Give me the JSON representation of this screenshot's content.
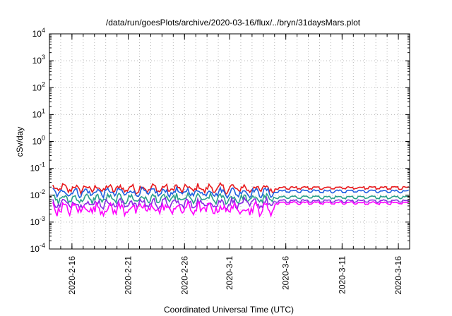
{
  "chart_data": {
    "type": "line",
    "title": "/data/run/goesPlots/archive/2020-03-16/flux/../bryn/31daysMars.plot",
    "xlabel": "Coordinated Universal Time (UTC)",
    "ylabel": "cSv/day",
    "yscale": "log",
    "ylim": [
      0.0001,
      10000
    ],
    "yticks": [
      {
        "value": 0.0001,
        "base": "10",
        "exp": "-4"
      },
      {
        "value": 0.001,
        "base": "10",
        "exp": "-3"
      },
      {
        "value": 0.01,
        "base": "10",
        "exp": "-2"
      },
      {
        "value": 0.1,
        "base": "10",
        "exp": "-1"
      },
      {
        "value": 1,
        "base": "10",
        "exp": "0"
      },
      {
        "value": 10,
        "base": "10",
        "exp": "1"
      },
      {
        "value": 100,
        "base": "10",
        "exp": "2"
      },
      {
        "value": 1000,
        "base": "10",
        "exp": "3"
      },
      {
        "value": 10000,
        "base": "10",
        "exp": "4"
      }
    ],
    "xlim": [
      "2020-02-14",
      "2020-03-17"
    ],
    "xticks": [
      "2020-2-16",
      "2020-2-21",
      "2020-2-26",
      "2020-3-1",
      "2020-3-6",
      "2020-3-11",
      "2020-3-16"
    ],
    "grid": true,
    "legend": "none",
    "series": [
      {
        "color": "#e8191c",
        "level": 0.018,
        "noise": 0.22,
        "quiet_level": 0.02
      },
      {
        "color": "#1f5fe0",
        "level": 0.013,
        "noise": 0.2,
        "quiet_level": 0.015
      },
      {
        "color": "#2aa08a",
        "level": 0.0075,
        "noise": 0.22,
        "quiet_level": 0.009
      },
      {
        "color": "#8a2be2",
        "level": 0.005,
        "noise": 0.25,
        "quiet_level": 0.0065
      },
      {
        "color": "#ff00ff",
        "level": 0.0032,
        "noise": 0.35,
        "quiet_level": 0.0055
      }
    ]
  }
}
